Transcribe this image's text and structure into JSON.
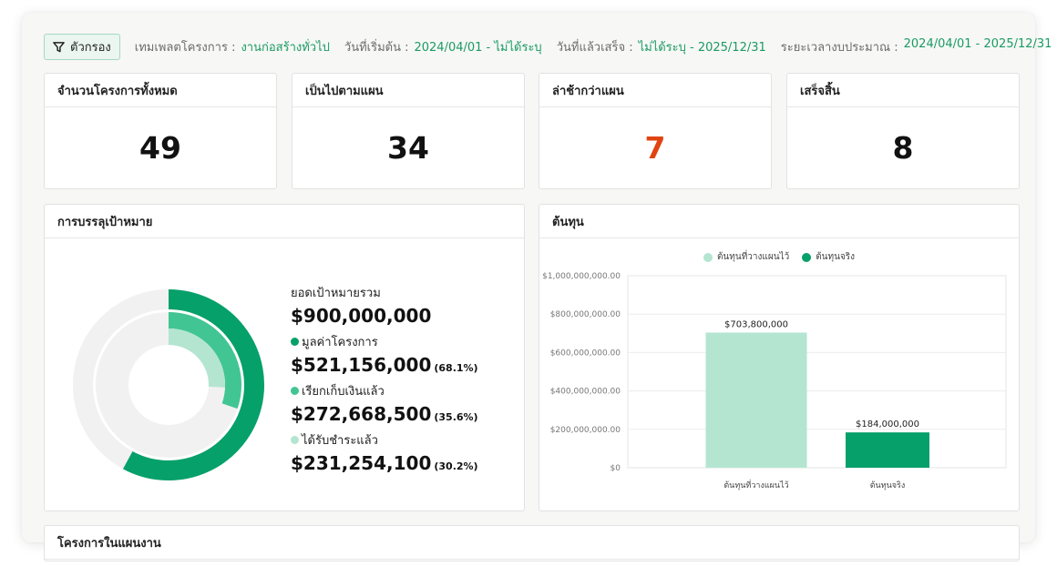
{
  "filters": {
    "button_label": "ตัวกรอง",
    "template_label": "เทมเพลตโครงการ :",
    "template_value": "งานก่อสร้างทั่วไป",
    "start_label": "วันที่เริ่มต้น :",
    "start_value": "2024/04/01 - ไม่ได้ระบุ",
    "end_label": "วันที่แล้วเสร็จ :",
    "end_value": "ไม่ได้ระบุ - 2025/12/31",
    "period_label": "ระยะเวลางบประมาณ :",
    "period_value": "2024/04/01 - 2025/12/31"
  },
  "stats": [
    {
      "label": "จำนวนโครงการทั้งหมด",
      "value": "49"
    },
    {
      "label": "เป็นไปตามแผน",
      "value": "34"
    },
    {
      "label": "ล่าช้ากว่าแผน",
      "value": "7"
    },
    {
      "label": "เสร็จสิ้น",
      "value": "8"
    }
  ],
  "achievement": {
    "title": "การบรรลุเป้าหมาย",
    "target_label": "ยอดเป้าหมายรวม",
    "target_value": "$900,000,000",
    "items": [
      {
        "label": "มูลค่าโครงการ",
        "value": "$521,156,000",
        "pct": "(68.1%)",
        "fraction": 0.579,
        "color": "#06a06a"
      },
      {
        "label": "เรียกเก็บเงินแล้ว",
        "value": "$272,668,500",
        "pct": "(35.6%)",
        "fraction": 0.303,
        "color": "#41c593"
      },
      {
        "label": "ได้รับชำระแล้ว",
        "value": "$231,254,100",
        "pct": "(30.2%)",
        "fraction": 0.257,
        "color": "#b3e5d1"
      }
    ]
  },
  "cost": {
    "title": "ต้นทุน",
    "chart_data": {
      "type": "bar",
      "categories": [
        "ต้นทุนที่วางแผนไว้",
        "ต้นทุนจริง"
      ],
      "series": [
        {
          "name": "ต้นทุนที่วางแผนไว้",
          "values": [
            703800000,
            null
          ],
          "color": "#b3e5d1"
        },
        {
          "name": "ต้นทุนจริง",
          "values": [
            null,
            184000000
          ],
          "color": "#06a06a"
        }
      ],
      "data_labels": [
        "$703,800,000",
        "$184,000,000"
      ],
      "ylim": [
        0,
        1000000000
      ],
      "yticks": [
        "$0",
        "$200,000,000.00",
        "$400,000,000.00",
        "$600,000,000.00",
        "$800,000,000.00",
        "$1,000,000,000.00"
      ],
      "legend": "top-center",
      "grid": true
    }
  },
  "next_section": {
    "title": "โครงการในแผนงาน"
  }
}
